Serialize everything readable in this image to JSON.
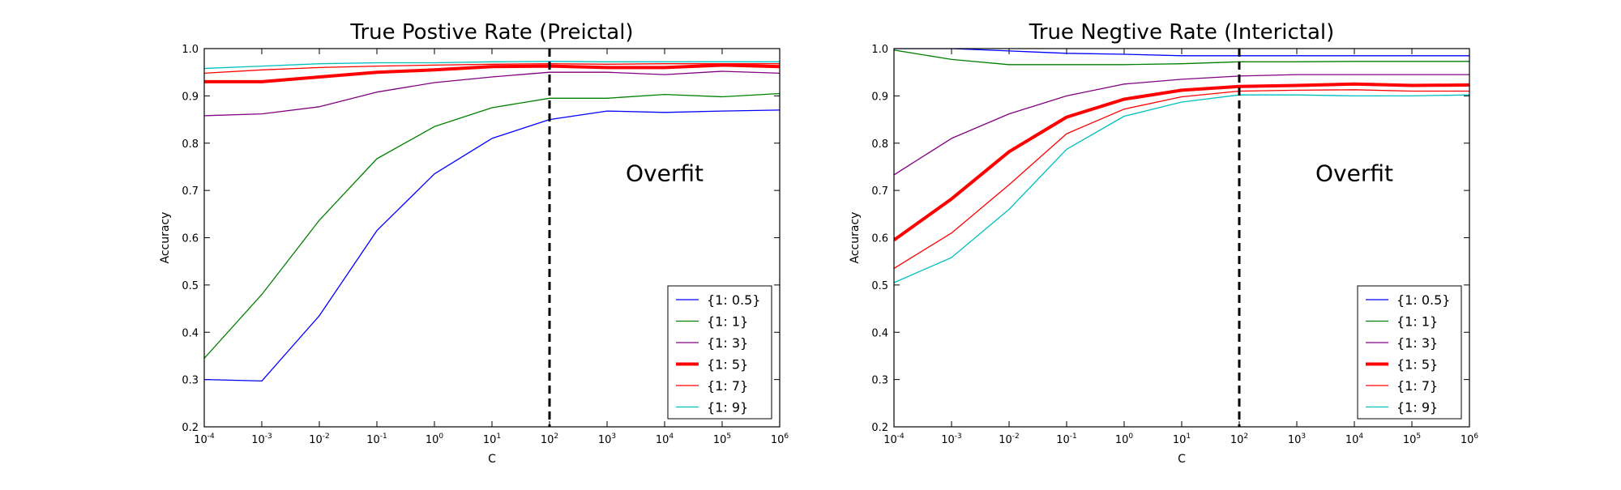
{
  "chart_data": [
    {
      "type": "line",
      "title": "True Postive Rate (Preictal)",
      "xlabel": "C",
      "ylabel": "Accuracy",
      "xscale": "log",
      "x": [
        0.0001,
        0.001,
        0.01,
        0.1,
        1,
        10,
        100,
        1000,
        10000,
        100000,
        1000000
      ],
      "xticks": [
        "10^-4",
        "10^-3",
        "10^-2",
        "10^-1",
        "10^0",
        "10^1",
        "10^2",
        "10^3",
        "10^4",
        "10^5",
        "10^6"
      ],
      "yticks": [
        "0.2",
        "0.3",
        "0.4",
        "0.5",
        "0.6",
        "0.7",
        "0.8",
        "0.9",
        "1.0"
      ],
      "xlim": [
        0.0001,
        1000000
      ],
      "ylim": [
        0.2,
        1.0
      ],
      "vline": 100,
      "annotation": {
        "text": "Overfit",
        "x": 10000,
        "y": 0.72
      },
      "legend_position": "lower right",
      "grid": false,
      "series": [
        {
          "name": "{1: 0.5}",
          "color": "#0000ff",
          "width": 1.3,
          "values": [
            0.3,
            0.297,
            0.435,
            0.615,
            0.735,
            0.81,
            0.85,
            0.868,
            0.865,
            0.868,
            0.87
          ]
        },
        {
          "name": "{1: 1}",
          "color": "#008000",
          "width": 1.3,
          "values": [
            0.345,
            0.48,
            0.637,
            0.767,
            0.835,
            0.875,
            0.895,
            0.895,
            0.903,
            0.898,
            0.905
          ]
        },
        {
          "name": "{1: 3}",
          "color": "#800080",
          "width": 1.3,
          "values": [
            0.858,
            0.862,
            0.877,
            0.908,
            0.928,
            0.94,
            0.95,
            0.95,
            0.945,
            0.952,
            0.948
          ]
        },
        {
          "name": "{1: 5}",
          "color": "#ff0000",
          "width": 4,
          "values": [
            0.93,
            0.93,
            0.94,
            0.95,
            0.955,
            0.962,
            0.963,
            0.96,
            0.96,
            0.965,
            0.962
          ]
        },
        {
          "name": "{1: 7}",
          "color": "#ff0000",
          "width": 1.3,
          "values": [
            0.948,
            0.955,
            0.96,
            0.963,
            0.965,
            0.967,
            0.968,
            0.967,
            0.968,
            0.968,
            0.968
          ]
        },
        {
          "name": "{1: 9}",
          "color": "#00bfbf",
          "width": 1.3,
          "values": [
            0.958,
            0.963,
            0.968,
            0.97,
            0.97,
            0.972,
            0.973,
            0.972,
            0.972,
            0.972,
            0.972
          ]
        }
      ]
    },
    {
      "type": "line",
      "title": "True Negtive Rate (Interictal)",
      "xlabel": "C",
      "ylabel": "Accuracy",
      "xscale": "log",
      "x": [
        0.0001,
        0.001,
        0.01,
        0.1,
        1,
        10,
        100,
        1000,
        10000,
        100000,
        1000000
      ],
      "xticks": [
        "10^-4",
        "10^-3",
        "10^-2",
        "10^-1",
        "10^0",
        "10^1",
        "10^2",
        "10^3",
        "10^4",
        "10^5",
        "10^6"
      ],
      "yticks": [
        "0.2",
        "0.3",
        "0.4",
        "0.5",
        "0.6",
        "0.7",
        "0.8",
        "0.9",
        "1.0"
      ],
      "xlim": [
        0.0001,
        1000000
      ],
      "ylim": [
        0.2,
        1.0
      ],
      "vline": 100,
      "annotation": {
        "text": "Overfit",
        "x": 10000,
        "y": 0.72
      },
      "legend_position": "lower right",
      "grid": false,
      "series": [
        {
          "name": "{1: 0.5}",
          "color": "#0000ff",
          "width": 1.3,
          "values": [
            1.0,
            1.0,
            0.995,
            0.99,
            0.988,
            0.985,
            0.985,
            0.985,
            0.985,
            0.985,
            0.985
          ]
        },
        {
          "name": "{1: 1}",
          "color": "#008000",
          "width": 1.3,
          "values": [
            0.997,
            0.977,
            0.966,
            0.966,
            0.966,
            0.968,
            0.972,
            0.972,
            0.973,
            0.973,
            0.973
          ]
        },
        {
          "name": "{1: 3}",
          "color": "#800080",
          "width": 1.3,
          "values": [
            0.733,
            0.81,
            0.862,
            0.9,
            0.925,
            0.935,
            0.942,
            0.945,
            0.945,
            0.945,
            0.945
          ]
        },
        {
          "name": "{1: 5}",
          "color": "#ff0000",
          "width": 4,
          "values": [
            0.595,
            0.682,
            0.782,
            0.855,
            0.893,
            0.912,
            0.92,
            0.922,
            0.925,
            0.922,
            0.923
          ]
        },
        {
          "name": "{1: 7}",
          "color": "#ff0000",
          "width": 1.3,
          "values": [
            0.535,
            0.61,
            0.712,
            0.82,
            0.872,
            0.898,
            0.91,
            0.912,
            0.913,
            0.91,
            0.91
          ]
        },
        {
          "name": "{1: 9}",
          "color": "#00bfbf",
          "width": 1.3,
          "values": [
            0.505,
            0.558,
            0.66,
            0.787,
            0.857,
            0.887,
            0.902,
            0.902,
            0.9,
            0.9,
            0.902
          ]
        }
      ]
    }
  ]
}
